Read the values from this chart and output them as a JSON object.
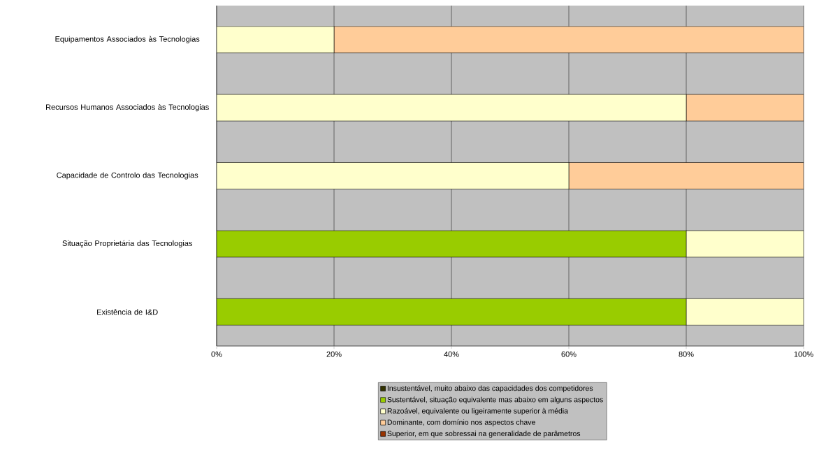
{
  "chart_data": {
    "type": "bar",
    "orientation": "horizontal",
    "stacked": true,
    "categories": [
      "Equipamentos Associados às Tecnologias",
      "Recursos Humanos Associados às Tecnologias",
      "Capacidade de Controlo das Tecnologias",
      "Situação Proprietária das Tecnologias",
      "Existência de I&D"
    ],
    "series": [
      {
        "name": "Insustentável, muito abaixo das capacidades dos competidores",
        "color": "#333300",
        "values": [
          0,
          0,
          0,
          0,
          0
        ]
      },
      {
        "name": "Sustentável, situação equivalente mas abaixo em alguns aspectos",
        "color": "#99cc00",
        "values": [
          0,
          0,
          0,
          80,
          80
        ]
      },
      {
        "name": "Razoável, equivalente ou ligeiramente superior à média",
        "color": "#ffffcc",
        "values": [
          20,
          80,
          60,
          20,
          20
        ]
      },
      {
        "name": "Dominante, com domínio nos aspectos chave",
        "color": "#ffcc99",
        "values": [
          80,
          20,
          40,
          0,
          0
        ]
      },
      {
        "name": "Superior, em que sobressai na generalidade de parâmetros",
        "color": "#993300",
        "values": [
          0,
          0,
          0,
          0,
          0
        ]
      }
    ],
    "xlim": [
      0,
      100
    ],
    "xticks": [
      {
        "value": 0,
        "label": "0%"
      },
      {
        "value": 20,
        "label": "20%"
      },
      {
        "value": 40,
        "label": "40%"
      },
      {
        "value": 60,
        "label": "60%"
      },
      {
        "value": 80,
        "label": "80%"
      },
      {
        "value": 100,
        "label": "100%"
      }
    ],
    "grid": "x",
    "legend": "bottom"
  }
}
